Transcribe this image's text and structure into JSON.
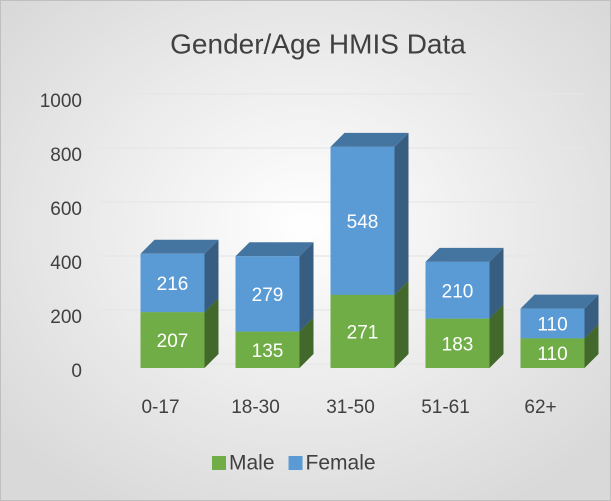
{
  "chart_data": {
    "type": "bar",
    "stacked": true,
    "title": "Gender/Age HMIS Data",
    "categories": [
      "0-17",
      "18-30",
      "31-50",
      "51-61",
      "62+"
    ],
    "series": [
      {
        "name": "Male",
        "color": "#70ad47",
        "values": [
          207,
          135,
          271,
          183,
          110
        ]
      },
      {
        "name": "Female",
        "color": "#5b9bd5",
        "values": [
          216,
          279,
          548,
          210,
          110
        ]
      }
    ],
    "ylim": [
      0,
      1000
    ],
    "yticks": [
      0,
      200,
      400,
      600,
      800,
      1000
    ],
    "grid": true,
    "legend": "bottom"
  }
}
